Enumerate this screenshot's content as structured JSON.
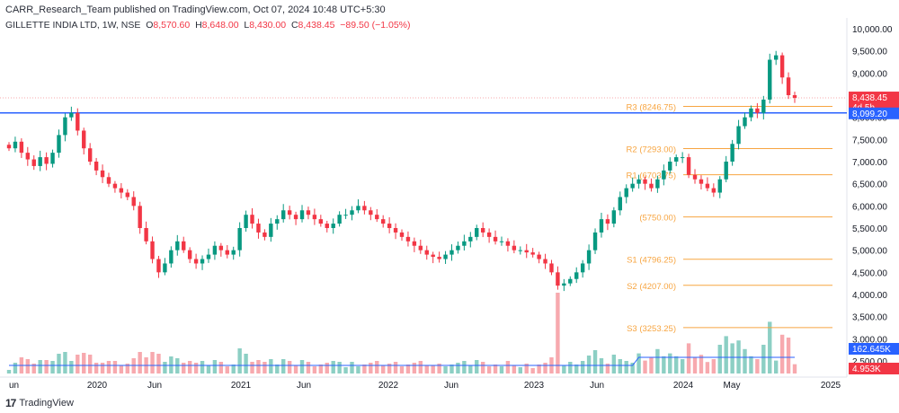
{
  "header": {
    "publisher": "CARR_Research_Team published on TradingView.com, Oct 07, 2024 10:48 UTC+5:30",
    "symbol": "GILLETTE INDIA LTD, 1W, NSE",
    "o_label": "O",
    "o_value": "8,570.60",
    "h_label": "H",
    "h_value": "8,648.00",
    "l_label": "L",
    "l_value": "8,430.00",
    "c_label": "C",
    "c_value": "8,438.45",
    "change": "−89.50 (−1.05%)"
  },
  "footer": {
    "brand": "TradingView"
  },
  "colors": {
    "up": "#089981",
    "down": "#f23645",
    "up_vol": "#8ccfc4",
    "down_vol": "#f7a9ae",
    "pivot": "#f7a541",
    "support_line": "#2962ff",
    "vol_ma": "#2962ff"
  },
  "chart_data": {
    "type": "candlestick",
    "y_axis": {
      "min": 2000,
      "max": 10100,
      "ticks": [
        "10,000.00",
        "9,500.00",
        "9,000.00",
        "8,500.00",
        "8,000.00",
        "7,500.00",
        "7,000.00",
        "6,500.00",
        "6,000.00",
        "5,500.00",
        "5,000.00",
        "4,500.00",
        "4,000.00",
        "3,500.00",
        "3,000.00",
        "2,500.00"
      ]
    },
    "x_axis": {
      "labels": [
        "un",
        "2020",
        "Jun",
        "2021",
        "Jun",
        "2022",
        "Jun",
        "2023",
        "Jun",
        "2024",
        "May",
        "2025"
      ]
    },
    "price_path_weekly_close_approx": [
      7300,
      7450,
      7200,
      7050,
      6900,
      7100,
      6950,
      7200,
      7600,
      8000,
      8100,
      7700,
      7300,
      7000,
      6800,
      6650,
      6500,
      6400,
      6300,
      6200,
      6000,
      5500,
      5200,
      4800,
      4500,
      4700,
      5000,
      5200,
      5000,
      4800,
      4700,
      4800,
      4900,
      5100,
      5000,
      4900,
      5000,
      5500,
      5800,
      5600,
      5400,
      5300,
      5600,
      5700,
      5900,
      5800,
      5700,
      5900,
      5800,
      5700,
      5600,
      5500,
      5600,
      5800,
      5800,
      5900,
      6000,
      5900,
      5800,
      5700,
      5600,
      5500,
      5400,
      5300,
      5200,
      5100,
      5000,
      4900,
      4850,
      4800,
      4900,
      5000,
      5100,
      5200,
      5300,
      5500,
      5400,
      5300,
      5200,
      5200,
      5100,
      5000,
      5000,
      4950,
      4900,
      4800,
      4700,
      4500,
      4200,
      4250,
      4350,
      4500,
      4700,
      5000,
      5400,
      5700,
      5600,
      5900,
      6200,
      6400,
      6500,
      6600,
      6500,
      6400,
      6600,
      6800,
      7000,
      7100,
      7100,
      6700,
      6600,
      6500,
      6400,
      6300,
      6600,
      7000,
      7400,
      7800,
      8000,
      8200,
      8100,
      8400,
      9300,
      9400,
      8900,
      8500,
      8438.45
    ],
    "current_price": {
      "value": "8,438.45",
      "countdown": "4d 5h",
      "color": "#f23645"
    },
    "support_level": {
      "value": "8,099.20",
      "price": 8099.2
    },
    "pivots": [
      {
        "label": "R3 (8246.75)",
        "price": 8246.75
      },
      {
        "label": "R2 (7293.00)",
        "price": 7293.0
      },
      {
        "label": "R1 (6703.75)",
        "price": 6703.75
      },
      {
        "label": "(5750.00)",
        "price": 5750.0
      },
      {
        "label": "S1 (4796.25)",
        "price": 4796.25
      },
      {
        "label": "S2 (4207.00)",
        "price": 4207.0
      },
      {
        "label": "S3 (3253.25)",
        "price": 3253.25
      }
    ],
    "volume": {
      "ma_label": "162.645K",
      "last_label": "4.953K"
    }
  }
}
